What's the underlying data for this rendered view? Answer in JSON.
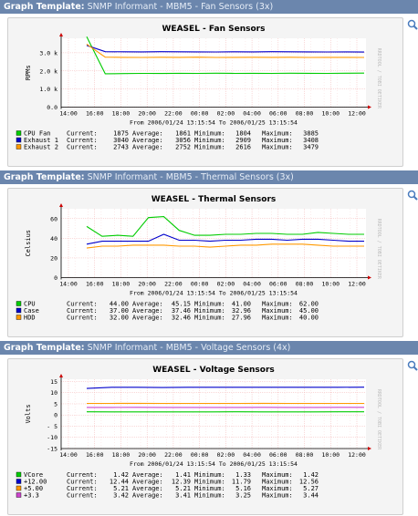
{
  "graphs": [
    {
      "header_lead": "Graph Template:",
      "header_name": "SNMP Informant - MBM5 - Fan Sensors (3x)",
      "chart_data": {
        "type": "line",
        "title": "WEASEL - Fan Sensors",
        "ylabel": "RPMs",
        "yticks": [
          "3.0 k",
          "2.0 k",
          "1.0 k",
          "0.0"
        ],
        "ytick_values": [
          3000,
          2000,
          1000,
          0
        ],
        "ylim": [
          0,
          3800
        ],
        "xticks": [
          "14:00",
          "16:00",
          "18:00",
          "20:00",
          "22:00",
          "00:00",
          "02:00",
          "04:00",
          "06:00",
          "08:00",
          "10:00",
          "12:00"
        ],
        "range_text": "From 2006/01/24 13:15:54 To 2006/01/25 13:15:54",
        "side_text": "RRDTOOL / TOBI OETIKER",
        "grid": true,
        "series": [
          {
            "name": "CPU Fan",
            "color": "#00cc00",
            "current": "1875",
            "average": "1861",
            "minimum": "1804",
            "maximum": "3885",
            "values": [
              3885,
              1840,
              1850,
              1860,
              1855,
              1865,
              1860,
              1870,
              1860,
              1865,
              1860,
              1870,
              1865,
              1860,
              1870,
              1875
            ]
          },
          {
            "name": "Exhaust 1",
            "color": "#0000cc",
            "current": "3040",
            "average": "3056",
            "minimum": "2909",
            "maximum": "3408",
            "values": [
              3408,
              3060,
              3055,
              3050,
              3060,
              3055,
              3050,
              3045,
              3055,
              3050,
              3060,
              3055,
              3050,
              3045,
              3050,
              3040
            ]
          },
          {
            "name": "Exhaust 2",
            "color": "#ff9900",
            "current": "2743",
            "average": "2752",
            "minimum": "2616",
            "maximum": "3479",
            "values": [
              3479,
              2760,
              2750,
              2745,
              2755,
              2750,
              2760,
              2745,
              2750,
              2755,
              2748,
              2752,
              2745,
              2750,
              2748,
              2743
            ]
          }
        ]
      },
      "labels": {
        "current": "Current:",
        "average": "Average:",
        "minimum": "Minimum:",
        "maximum": "Maximum:"
      }
    },
    {
      "header_lead": "Graph Template:",
      "header_name": "SNMP Informant - MBM5 - Thermal Sensors (3x)",
      "chart_data": {
        "type": "line",
        "title": "WEASEL - Thermal Sensors",
        "ylabel": "Celsius",
        "yticks": [
          "60",
          "40",
          "20",
          "0"
        ],
        "ytick_values": [
          60,
          40,
          20,
          0
        ],
        "ylim": [
          0,
          70
        ],
        "xticks": [
          "14:00",
          "16:00",
          "18:00",
          "20:00",
          "22:00",
          "00:00",
          "02:00",
          "04:00",
          "06:00",
          "08:00",
          "10:00",
          "12:00"
        ],
        "range_text": "From 2006/01/24 13:15:54 To 2006/01/25 13:15:54",
        "side_text": "RRDTOOL / TOBI OETIKER",
        "grid": true,
        "series": [
          {
            "name": "CPU",
            "color": "#00cc00",
            "current": "44.00",
            "average": "45.15",
            "minimum": "41.00",
            "maximum": "62.00",
            "values": [
              52,
              42,
              43,
              42,
              61,
              62,
              48,
              43,
              43,
              44,
              44,
              45,
              45,
              44,
              44,
              46,
              45,
              44,
              44
            ]
          },
          {
            "name": "Case",
            "color": "#0000cc",
            "current": "37.00",
            "average": "37.46",
            "minimum": "32.96",
            "maximum": "45.00",
            "values": [
              34,
              37,
              37,
              37,
              37,
              44,
              38,
              38,
              37,
              38,
              38,
              39,
              39,
              38,
              39,
              39,
              38,
              37,
              37
            ]
          },
          {
            "name": "HDD",
            "color": "#ff9900",
            "current": "32.00",
            "average": "32.46",
            "minimum": "27.96",
            "maximum": "40.00",
            "values": [
              30,
              32,
              32,
              33,
              33,
              33,
              32,
              32,
              31,
              32,
              33,
              33,
              34,
              34,
              34,
              33,
              32,
              32,
              32
            ]
          }
        ]
      },
      "labels": {
        "current": "Current:",
        "average": "Average:",
        "minimum": "Minimum:",
        "maximum": "Maximum:"
      }
    },
    {
      "header_lead": "Graph Template:",
      "header_name": "SNMP Informant - MBM5 - Voltage Sensors (4x)",
      "chart_data": {
        "type": "line",
        "title": "WEASEL - Voltage Sensors",
        "ylabel": "Volts",
        "yticks": [
          "15",
          "10",
          "5",
          "0",
          "- 5",
          "-10",
          "-15"
        ],
        "ytick_values": [
          15,
          10,
          5,
          0,
          -5,
          -10,
          -15
        ],
        "ylim": [
          -15,
          16
        ],
        "xticks": [
          "14:00",
          "16:00",
          "18:00",
          "20:00",
          "22:00",
          "00:00",
          "02:00",
          "04:00",
          "06:00",
          "08:00",
          "10:00",
          "12:00"
        ],
        "range_text": "From 2006/01/24 13:15:54 To 2006/01/25 13:15:54",
        "side_text": "RRDTOOL / TOBI OETIKER",
        "grid": true,
        "series": [
          {
            "name": "VCore",
            "color": "#00cc00",
            "current": "1.42",
            "average": "1.41",
            "minimum": "1.33",
            "maximum": "1.42",
            "values": [
              1.42,
              1.41,
              1.41,
              1.4,
              1.41,
              1.41,
              1.42,
              1.41,
              1.4,
              1.41,
              1.42,
              1.42
            ]
          },
          {
            "name": "+12.00",
            "color": "#0000cc",
            "current": "12.44",
            "average": "12.39",
            "minimum": "11.79",
            "maximum": "12.56",
            "values": [
              11.9,
              12.4,
              12.4,
              12.3,
              12.4,
              12.4,
              12.4,
              12.4,
              12.4,
              12.4,
              12.4,
              12.44
            ]
          },
          {
            "name": "+5.00",
            "color": "#ff9900",
            "current": "5.21",
            "average": "5.21",
            "minimum": "5.16",
            "maximum": "5.27",
            "values": [
              5.21,
              5.21,
              5.22,
              5.21,
              5.2,
              5.21,
              5.21,
              5.22,
              5.21,
              5.21,
              5.21,
              5.21
            ]
          },
          {
            "name": "+3.3",
            "color": "#cc44cc",
            "current": "3.42",
            "average": "3.41",
            "minimum": "3.25",
            "maximum": "3.44",
            "values": [
              3.41,
              3.41,
              3.42,
              3.41,
              3.4,
              3.41,
              3.41,
              3.42,
              3.41,
              3.41,
              3.42,
              3.42
            ]
          }
        ]
      },
      "labels": {
        "current": "Current:",
        "average": "Average:",
        "minimum": "Minimum:",
        "maximum": "Maximum:"
      }
    }
  ]
}
